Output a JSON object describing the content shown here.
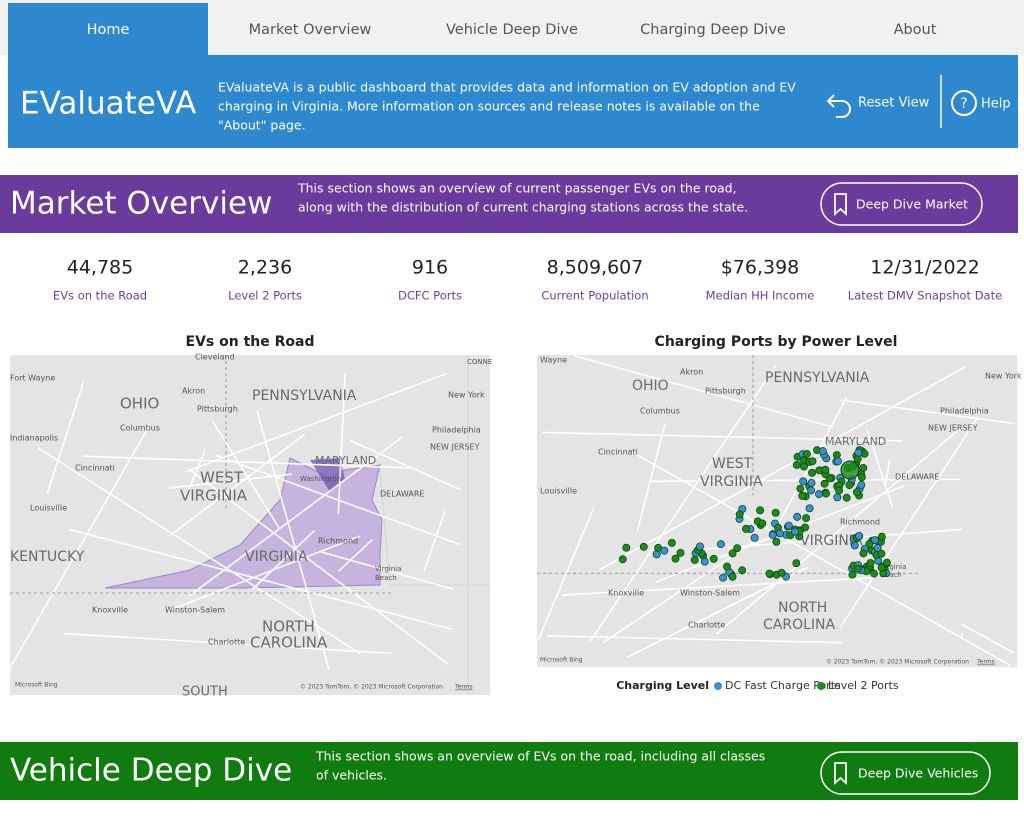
{
  "nav": {
    "tabs": [
      "Home",
      "Market Overview",
      "Vehicle Deep Dive",
      "Charging Deep Dive",
      "About"
    ]
  },
  "header": {
    "title": "EValuateVA",
    "description_lines": [
      "EValuateVA is a public dashboard that provides data and information on EV adoption and EV",
      "charging in Virginia. More information on sources and release notes is available on the",
      "\"About\" page."
    ],
    "reset": "Reset View",
    "help": "Help"
  },
  "market": {
    "title": "Market Overview",
    "description_lines": [
      "This section shows an overview of current passenger EVs on the road,",
      "along with the distribution of current charging stations across the state."
    ],
    "button": "Deep Dive Market"
  },
  "kpis": [
    {
      "value": "44,785",
      "label": "EVs on the Road"
    },
    {
      "value": "2,236",
      "label": "Level 2 Ports"
    },
    {
      "value": "916",
      "label": "DCFC Ports"
    },
    {
      "value": "8,509,607",
      "label": "Current Population"
    },
    {
      "value": "$76,398",
      "label": "Median HH Income"
    },
    {
      "value": "12/31/2022",
      "label": "Latest DMV Snapshot Date"
    }
  ],
  "maps": [
    {
      "title": "EVs on the Road",
      "labels": [
        "Cleveland",
        "CONNE",
        "Fort Wayne",
        "Akron",
        "OHIO",
        "PENNSYLVANIA",
        "New York",
        "Pittsburgh",
        "Columbus",
        "Philadelphia",
        "Indianapolis",
        "NEW JERSEY",
        "MARYLAND",
        "Cincinnati",
        "WEST",
        "VIRGINIA",
        "Washington",
        "DELAWARE",
        "Louisville",
        "Richmond",
        "KENTUCKY",
        "VIRGINIA",
        "Virginia",
        "Beach",
        "Knoxville",
        "Winston-Salem",
        "NORTH",
        "CAROLINA",
        "Charlotte",
        "SOUTH",
        "Microsoft Bing",
        "© 2023 TomTom, © 2023 Microsoft Corporation",
        "Terms"
      ]
    },
    {
      "title": "Charging Ports by Power Level",
      "labels": [
        "Wayne",
        "Akron",
        "OHIO",
        "PENNSYLVANIA",
        "New York",
        "Pittsburgh",
        "Columbus",
        "Philadelphia",
        "NEW JERSEY",
        "MARYLAND",
        "Cincinnati",
        "WEST",
        "VIRGINIA",
        "DELAWARE",
        "Louisville",
        "Richmond",
        "VIRGINIA",
        "Virginia",
        "Beach",
        "Knoxville",
        "Winston-Salem",
        "NORTH",
        "CAROLINA",
        "Charlotte",
        "Microsoft Bing",
        "© 2023 TomTom, © 2023 Microsoft Corporation",
        "Terms"
      ],
      "legend": {
        "title": "Charging Level",
        "items": [
          {
            "name": "DC Fast Charge Ports",
            "color": "#3a8fd9"
          },
          {
            "name": "Level 2 Ports",
            "color": "#1d8a1d"
          }
        ]
      }
    }
  ],
  "vehicle": {
    "title": "Vehicle Deep Dive",
    "description_lines": [
      "This section shows an overview of EVs on the road, including all classes",
      "of vehicles."
    ],
    "button": "Deep Dive Vehicles"
  }
}
